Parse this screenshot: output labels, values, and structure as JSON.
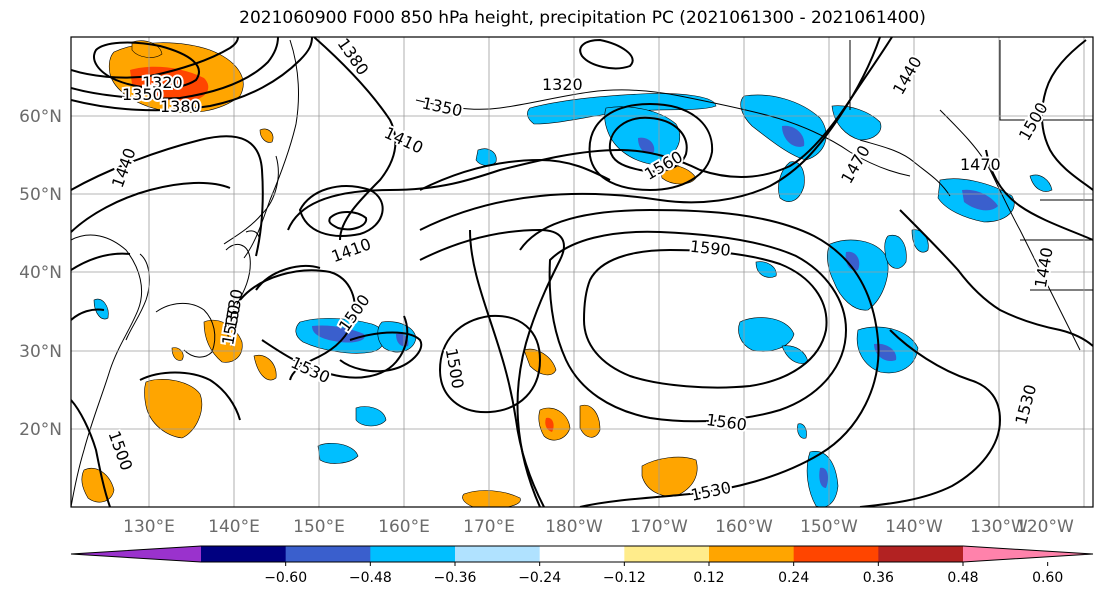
{
  "title": "2021060900 F000 850 hPa height, precipitation PC (2021061300 - 2021061400)",
  "latitude_labels": [
    "60°N",
    "50°N",
    "40°N",
    "30°N",
    "20°N"
  ],
  "longitude_labels": [
    "130°E",
    "140°E",
    "150°E",
    "160°E",
    "170°E",
    "180°W",
    "170°W",
    "160°W",
    "150°W",
    "140°W",
    "130°W",
    "120°W"
  ],
  "contour_labels": [
    "1320",
    "1350",
    "1380",
    "1440",
    "1380",
    "1320",
    "1350",
    "1410",
    "1410",
    "1440",
    "1470",
    "1470",
    "1500",
    "1590",
    "1500",
    "1530",
    "1500",
    "1530",
    "1560",
    "1530",
    "1530",
    "1500",
    "1440",
    "1530",
    "1560"
  ],
  "colorbar": {
    "tick_labels": [
      "−0.60",
      "−0.48",
      "−0.36",
      "−0.24",
      "−0.12",
      "0.12",
      "0.24",
      "0.36",
      "0.48",
      "0.60"
    ],
    "colors": [
      "#9a32cd",
      "#000080",
      "#3a5fcd",
      "#00bfff",
      "#b0e2ff",
      "#ffffff",
      "#ffec8b",
      "#ffa500",
      "#ff4500",
      "#b22222",
      "#ff82ab"
    ]
  },
  "colors": {
    "positive_weak": "#ffa500",
    "positive_strong": "#ff4500",
    "negative_weak": "#00bfff",
    "negative_strong": "#3a5fcd",
    "contour": "#000000",
    "grid": "#9b9b9b"
  }
}
